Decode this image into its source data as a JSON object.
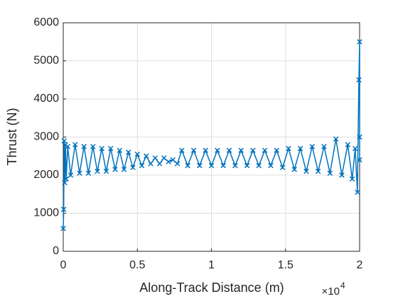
{
  "chart_data": {
    "type": "line",
    "xlabel": "Along-Track Distance (m)",
    "ylabel": "Thrust (N)",
    "x_exponent": {
      "base": "×10",
      "power": "4"
    },
    "xlim": [
      0,
      20000
    ],
    "ylim": [
      0,
      6000
    ],
    "xticks": [
      {
        "value": 0,
        "label": "0"
      },
      {
        "value": 5000,
        "label": "0.5"
      },
      {
        "value": 10000,
        "label": "1"
      },
      {
        "value": 15000,
        "label": "1.5"
      },
      {
        "value": 20000,
        "label": "2"
      }
    ],
    "yticks": [
      0,
      1000,
      2000,
      3000,
      4000,
      5000,
      6000
    ],
    "grid": true,
    "marker": "x",
    "series": [
      {
        "color": "#0072bd",
        "x": [
          0,
          30,
          60,
          100,
          150,
          200,
          300,
          500,
          800,
          1100,
          1400,
          1700,
          2000,
          2300,
          2600,
          2900,
          3200,
          3500,
          3800,
          4100,
          4400,
          4700,
          5000,
          5300,
          5600,
          5900,
          6200,
          6500,
          6800,
          7100,
          7400,
          7700,
          8000,
          8400,
          8800,
          9200,
          9600,
          10000,
          10400,
          10800,
          11200,
          11600,
          12000,
          12400,
          12800,
          13200,
          13600,
          14000,
          14400,
          14800,
          15200,
          15600,
          16000,
          16400,
          16800,
          17200,
          17600,
          18000,
          18400,
          18800,
          19200,
          19500,
          19700,
          19850,
          19950,
          20000,
          20000,
          20000
        ],
        "values": [
          600,
          1100,
          2900,
          1800,
          2800,
          1900,
          2750,
          2000,
          2800,
          2050,
          2750,
          2050,
          2750,
          2100,
          2700,
          2100,
          2700,
          2150,
          2650,
          2150,
          2600,
          2200,
          2550,
          2250,
          2500,
          2300,
          2450,
          2300,
          2450,
          2350,
          2400,
          2300,
          2650,
          2250,
          2650,
          2250,
          2650,
          2250,
          2650,
          2250,
          2650,
          2250,
          2650,
          2250,
          2650,
          2250,
          2650,
          2250,
          2650,
          2200,
          2700,
          2150,
          2700,
          2100,
          2750,
          2100,
          2750,
          2050,
          2950,
          2000,
          2800,
          1900,
          2700,
          1550,
          4500,
          5500,
          3000,
          2400
        ]
      }
    ]
  }
}
